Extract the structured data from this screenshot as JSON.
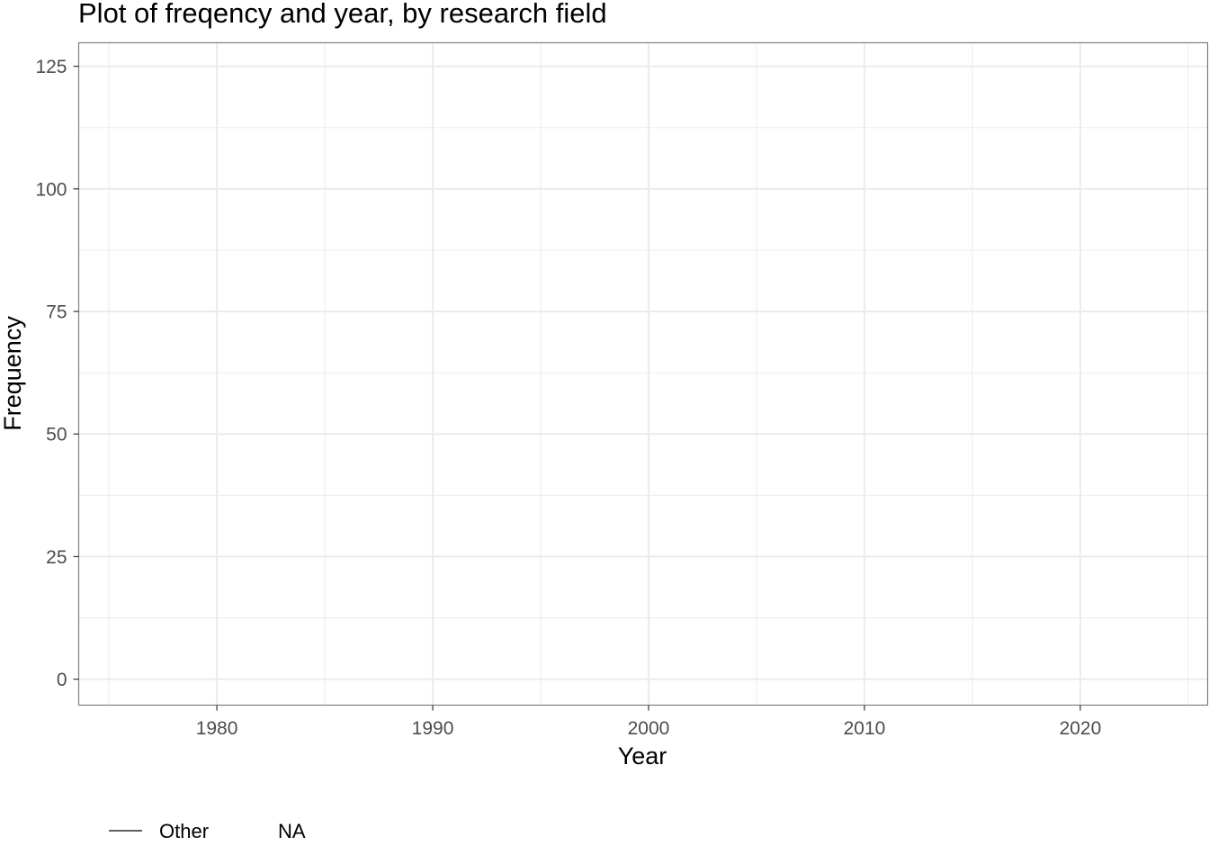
{
  "chart_data": {
    "type": "line",
    "title": "Plot of freqency and year, by research field",
    "xlabel": "Year",
    "ylabel": "Frequency",
    "xlim": [
      1973.6,
      2025.9
    ],
    "ylim": [
      -5.3,
      129.8
    ],
    "x_ticks": [
      1980,
      1990,
      2000,
      2010,
      2020
    ],
    "x_tick_labels": [
      "1980",
      "1990",
      "2000",
      "2010",
      "2020"
    ],
    "x_minor_ticks": [
      1975,
      1985,
      1995,
      2005,
      2015,
      2025
    ],
    "y_ticks": [
      0,
      25,
      50,
      75,
      100,
      125
    ],
    "y_tick_labels": [
      "0",
      "25",
      "50",
      "75",
      "100",
      "125"
    ],
    "y_minor_ticks": [
      12.5,
      37.5,
      62.5,
      87.5,
      112.5
    ],
    "grid": true,
    "legend": {
      "position": "bottom-left",
      "entries": [
        {
          "label": "Other",
          "key": "line"
        },
        {
          "label": "NA",
          "key": "none"
        }
      ]
    },
    "series": [],
    "colors": {
      "grid": "#ebebeb",
      "border": "#7f7f7f",
      "tick_text": "#4d4d4d",
      "text": "#000000",
      "legend_line": "#000000"
    }
  }
}
